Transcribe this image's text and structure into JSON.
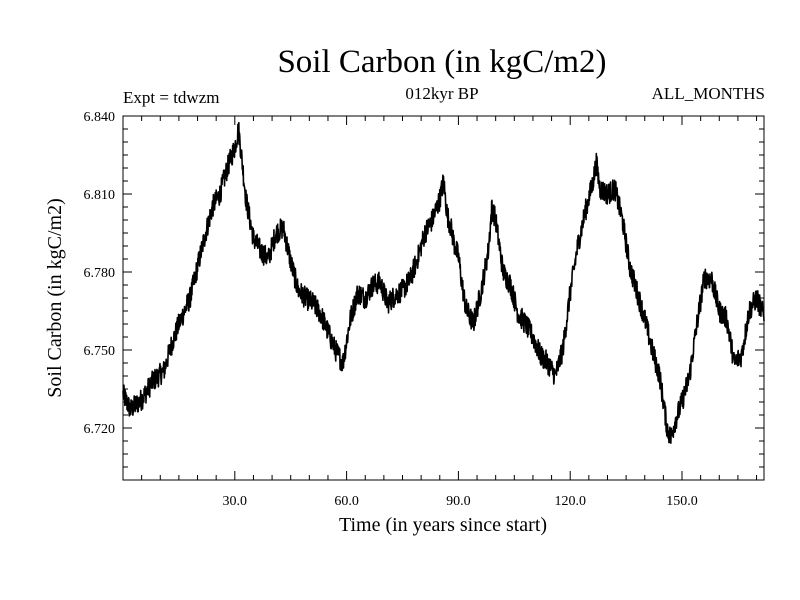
{
  "chart_data": {
    "type": "line",
    "title": "Soil Carbon (in kgC/m2)",
    "subtitle": "012kyr BP",
    "experiment_label": "Expt = tdwzm",
    "period_label": "ALL_MONTHS",
    "xlabel": "Time (in years since start)",
    "ylabel": "Soil Carbon (in kgC/m2)",
    "xlim": [
      0,
      172
    ],
    "ylim": [
      6.7,
      6.84
    ],
    "x_ticks": [
      30,
      60,
      90,
      120,
      150
    ],
    "x_tick_labels": [
      "30.0",
      "60.0",
      "90.0",
      "120.0",
      "150.0"
    ],
    "y_ticks": [
      6.72,
      6.75,
      6.78,
      6.81,
      6.84
    ],
    "y_tick_labels": [
      "6.720",
      "6.750",
      "6.780",
      "6.810",
      "6.840"
    ],
    "grid": false,
    "series": [
      {
        "name": "Soil Carbon",
        "x": [
          0,
          2,
          5,
          8,
          11,
          13,
          15,
          18,
          20,
          22,
          24,
          26,
          28,
          30,
          31,
          32,
          33,
          35,
          37,
          39,
          41,
          43,
          45,
          47,
          49,
          51,
          53,
          55,
          57,
          59,
          61,
          63,
          65,
          67,
          69,
          71,
          73,
          75,
          77,
          79,
          81,
          83,
          85,
          86,
          87,
          88,
          89,
          90,
          91,
          92,
          94,
          96,
          98,
          99,
          100,
          102,
          104,
          106,
          108,
          110,
          112,
          114,
          116,
          118,
          120,
          122,
          124,
          126,
          127,
          128,
          130,
          132,
          134,
          136,
          138,
          140,
          142,
          144,
          146,
          147,
          148,
          150,
          152,
          154,
          156,
          158,
          160,
          162,
          164,
          166,
          168,
          170,
          172
        ],
        "values": [
          6.733,
          6.727,
          6.731,
          6.738,
          6.742,
          6.752,
          6.76,
          6.77,
          6.782,
          6.794,
          6.805,
          6.81,
          6.82,
          6.828,
          6.835,
          6.822,
          6.808,
          6.793,
          6.788,
          6.785,
          6.795,
          6.797,
          6.784,
          6.773,
          6.77,
          6.768,
          6.764,
          6.757,
          6.75,
          6.745,
          6.762,
          6.772,
          6.77,
          6.775,
          6.776,
          6.768,
          6.771,
          6.773,
          6.777,
          6.785,
          6.795,
          6.8,
          6.808,
          6.815,
          6.802,
          6.797,
          6.79,
          6.786,
          6.775,
          6.766,
          6.76,
          6.772,
          6.788,
          6.805,
          6.8,
          6.78,
          6.775,
          6.764,
          6.76,
          6.755,
          6.748,
          6.745,
          6.74,
          6.75,
          6.772,
          6.79,
          6.803,
          6.814,
          6.822,
          6.812,
          6.81,
          6.812,
          6.8,
          6.782,
          6.772,
          6.762,
          6.75,
          6.74,
          6.72,
          6.716,
          6.722,
          6.73,
          6.74,
          6.76,
          6.778,
          6.777,
          6.765,
          6.762,
          6.745,
          6.748,
          6.765,
          6.77,
          6.763
        ]
      }
    ]
  }
}
